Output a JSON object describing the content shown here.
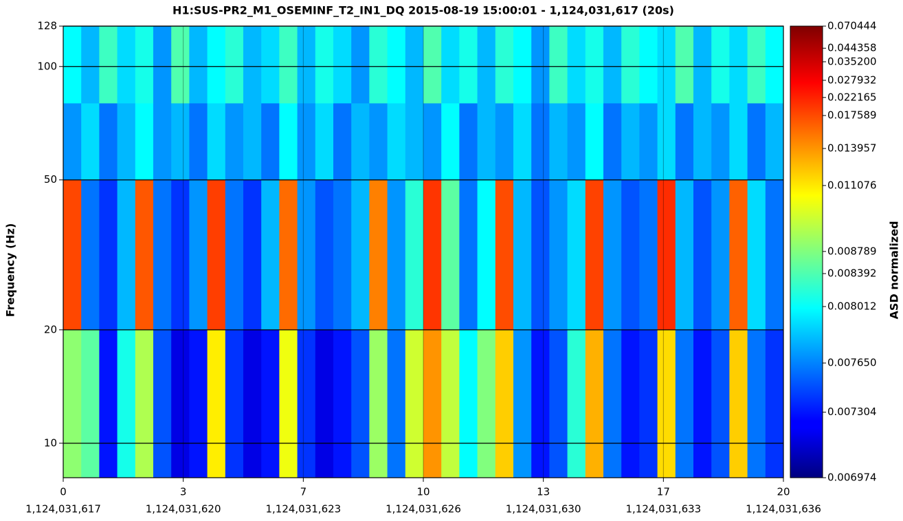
{
  "chart_data": {
    "type": "heatmap",
    "title": "H1:SUS-PR2_M1_OSEMINF_T2_IN1_DQ 2015-08-19 15:00:01 - 1,124,031,617 (20s)",
    "ylabel": "Frequency (Hz)",
    "colorbar_label": "ASD normalized",
    "xlim": [
      0,
      20
    ],
    "ylim": [
      8.1,
      128
    ],
    "yscale": "log",
    "grid": true,
    "xticks": [
      0,
      {
        "value": 3.333,
        "label": "3"
      },
      {
        "value": 6.667,
        "label": "7"
      },
      10,
      {
        "value": 13.333,
        "label": "13"
      },
      {
        "value": 16.667,
        "label": "17"
      },
      20
    ],
    "xtick_gps_labels": [
      "1,124,031,617",
      "1,124,031,620",
      "1,124,031,623",
      "1,124,031,626",
      "1,124,031,630",
      "1,124,031,633",
      "1,124,031,636"
    ],
    "yticks": [
      10,
      20,
      50,
      100,
      128
    ],
    "colorbar_ticks": [
      0.006974,
      0.007304,
      {
        "value": 0.00765,
        "label": "0.007650"
      },
      0.008012,
      0.008392,
      0.008789,
      0.011076,
      0.013957,
      0.017589,
      0.022165,
      0.027932,
      {
        "value": 0.0352,
        "label": "0.035200"
      },
      0.044358,
      0.070444
    ],
    "xbins": [
      0,
      0.5,
      1,
      1.5,
      2,
      2.5,
      3,
      3.5,
      4,
      4.5,
      5,
      5.5,
      6,
      6.5,
      7,
      7.5,
      8,
      8.5,
      9,
      9.5,
      10,
      10.5,
      11,
      11.5,
      12,
      12.5,
      13,
      13.5,
      14,
      14.5,
      15,
      15.5,
      16,
      16.5,
      17,
      17.5,
      18,
      18.5,
      19,
      19.5,
      20
    ],
    "ybins": [
      8.1,
      20,
      50,
      80,
      128
    ],
    "values": [
      [
        0.009,
        0.0085,
        0.0073,
        0.0081,
        0.0095,
        0.0075,
        0.0072,
        0.0073,
        0.011,
        0.0074,
        0.0072,
        0.0073,
        0.0105,
        0.0074,
        0.0072,
        0.0073,
        0.0075,
        0.0092,
        0.0076,
        0.01,
        0.014,
        0.0098,
        0.008,
        0.0088,
        0.012,
        0.0077,
        0.0073,
        0.0075,
        0.0082,
        0.013,
        0.0076,
        0.0073,
        0.0074,
        0.0115,
        0.0076,
        0.0073,
        0.0075,
        0.012,
        0.0076,
        0.0074
      ],
      [
        0.018,
        0.0076,
        0.0074,
        0.0078,
        0.017,
        0.0076,
        0.0074,
        0.0077,
        0.019,
        0.0076,
        0.0074,
        0.0078,
        0.016,
        0.0077,
        0.0075,
        0.0076,
        0.0078,
        0.015,
        0.0077,
        0.0082,
        0.02,
        0.0085,
        0.0076,
        0.008,
        0.0175,
        0.0078,
        0.0075,
        0.0077,
        0.0079,
        0.0185,
        0.0077,
        0.0075,
        0.0076,
        0.021,
        0.0078,
        0.0075,
        0.0077,
        0.0165,
        0.0079,
        0.0076
      ],
      [
        0.0077,
        0.0079,
        0.0076,
        0.0078,
        0.008,
        0.0077,
        0.0078,
        0.0076,
        0.0079,
        0.0077,
        0.0078,
        0.0076,
        0.008,
        0.0077,
        0.0079,
        0.0076,
        0.0078,
        0.0077,
        0.0079,
        0.0078,
        0.0077,
        0.008,
        0.0076,
        0.0078,
        0.0077,
        0.0079,
        0.0076,
        0.0078,
        0.0077,
        0.008,
        0.0076,
        0.0078,
        0.0077,
        0.0079,
        0.0076,
        0.0078,
        0.0077,
        0.0079,
        0.0076,
        0.0078
      ],
      [
        0.008,
        0.0078,
        0.0083,
        0.0079,
        0.0081,
        0.0077,
        0.0084,
        0.0078,
        0.008,
        0.0082,
        0.0078,
        0.0079,
        0.0083,
        0.0078,
        0.0081,
        0.0079,
        0.0077,
        0.0082,
        0.008,
        0.0078,
        0.0084,
        0.0079,
        0.0081,
        0.0078,
        0.0082,
        0.008,
        0.0077,
        0.0083,
        0.0079,
        0.0081,
        0.0078,
        0.0082,
        0.008,
        0.0079,
        0.0084,
        0.0078,
        0.0081,
        0.0079,
        0.0083,
        0.008
      ]
    ]
  }
}
